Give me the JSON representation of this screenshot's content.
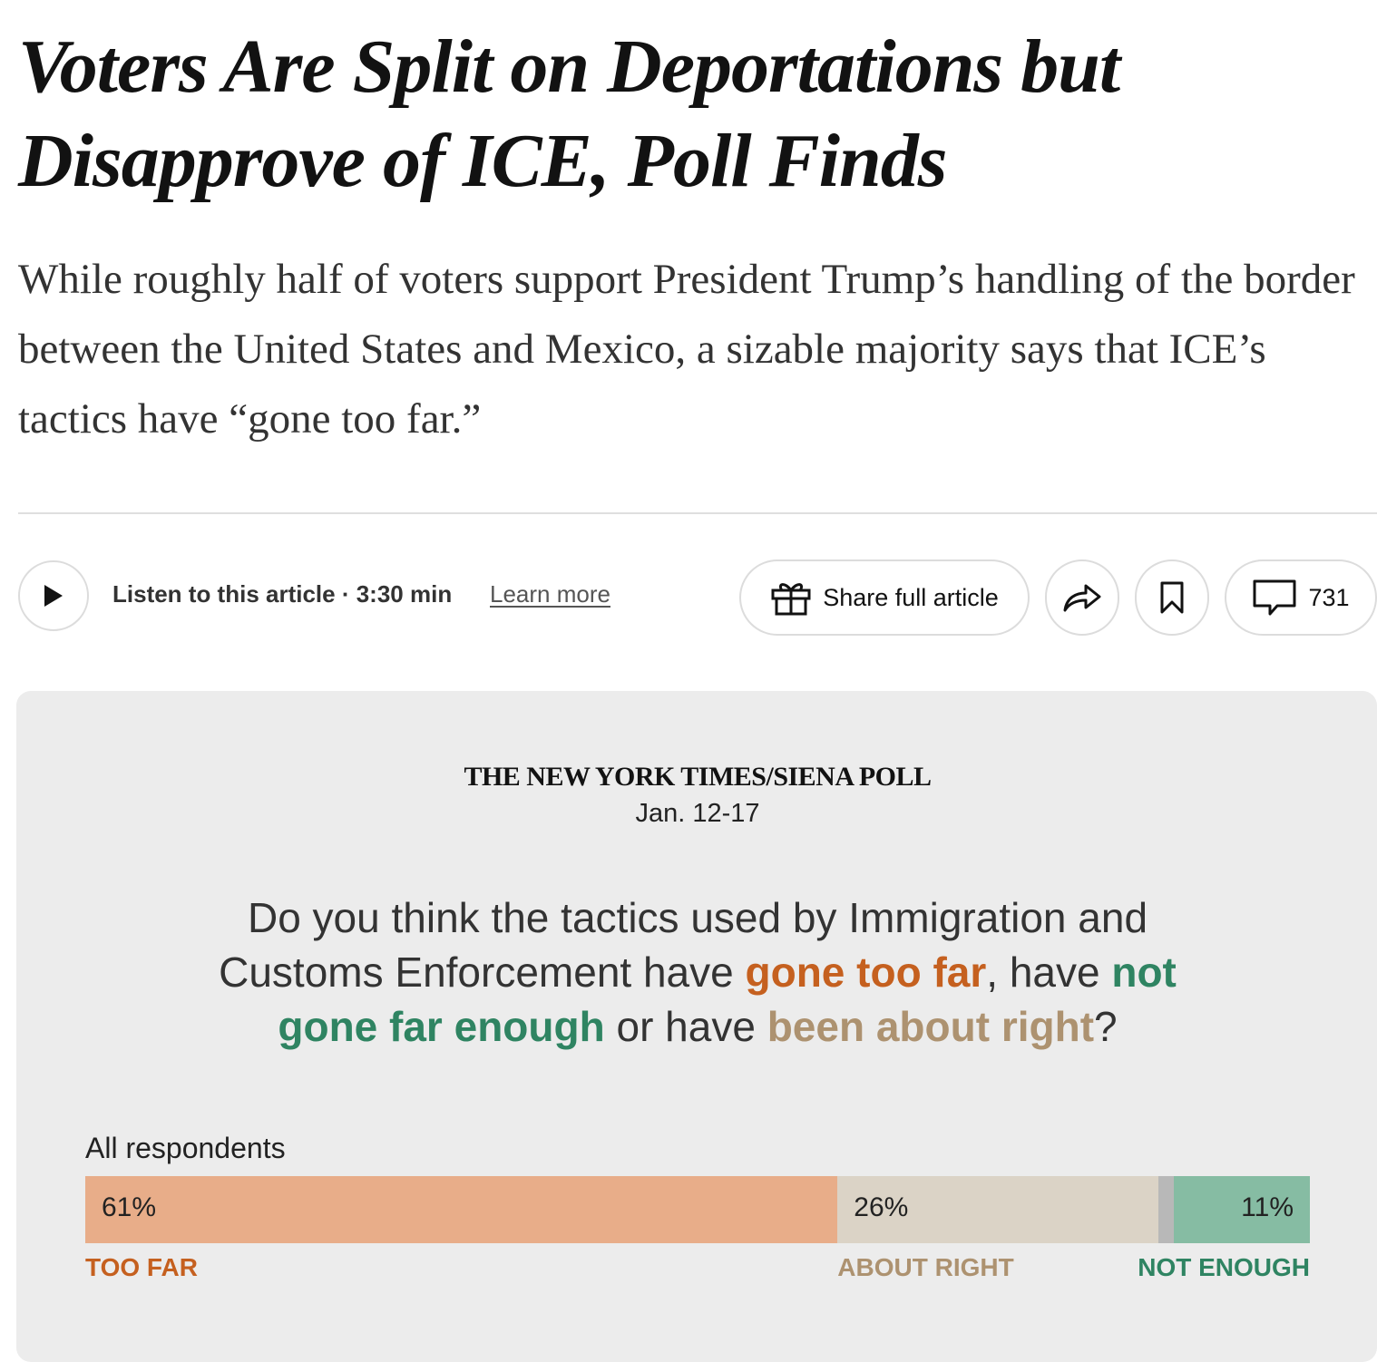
{
  "article": {
    "headline": "Voters Are Split on Deportations but Disapprove of ICE, Poll Finds",
    "dek": "While roughly half of voters support President Trump’s handling of the border between the United States and Mexico, a sizable majority says that ICE’s tactics have “gone too far.”"
  },
  "toolbar": {
    "listen_label": "Listen to this article · 3:30 min",
    "learn_more": "Learn more",
    "share_full_label": "Share full article",
    "comment_count": "731"
  },
  "poll": {
    "name": "THE NEW YORK TIMES/SIENA POLL",
    "dates": "Jan. 12-17",
    "question": {
      "part1": "Do you think the tactics used by Immigration and Customs Enforcement have ",
      "hl_far": "gone too far",
      "part2": ", have ",
      "hl_enough": "not gone far enough",
      "part3": " or have ",
      "hl_right": "been about right",
      "part4": "?"
    }
  },
  "chart_data": {
    "type": "bar",
    "orientation": "horizontal-stacked",
    "group": "All respondents",
    "segments": [
      {
        "key": "too_far",
        "label": "TOO FAR",
        "value": 61,
        "display": "61%",
        "color": "#e8ad89",
        "label_color": "#c5601f"
      },
      {
        "key": "about_right",
        "label": "ABOUT RIGHT",
        "value": 26,
        "display": "26%",
        "color": "#dbd3c6",
        "label_color": "#ad9270"
      },
      {
        "key": "unsure",
        "label": "",
        "value": 1.3,
        "display": "",
        "color": "#b8b8b8",
        "label_color": "#888888"
      },
      {
        "key": "not_enough",
        "label": "NOT ENOUGH",
        "value": 11,
        "display": "11%",
        "color": "#86bca3",
        "label_color": "#2f8462"
      }
    ],
    "xlim": [
      0,
      100
    ]
  }
}
